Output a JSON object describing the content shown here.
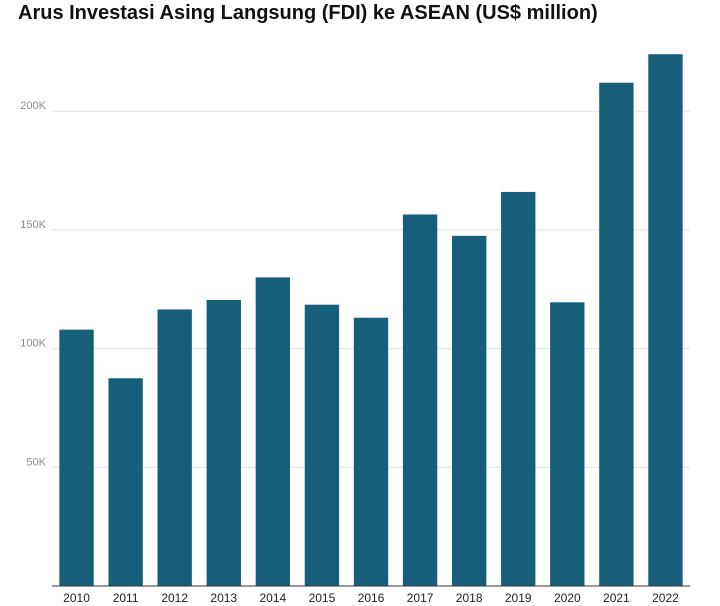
{
  "chart_data": {
    "type": "bar",
    "title": "Arus Investasi Asing Langsung (FDI) ke ASEAN (US$ million)",
    "xlabel": "",
    "ylabel": "",
    "categories": [
      "2010",
      "2011",
      "2012",
      "2013",
      "2014",
      "2015",
      "2016",
      "2017",
      "2018",
      "2019",
      "2020",
      "2021",
      "2022"
    ],
    "values": [
      108000,
      87500,
      116500,
      120500,
      130000,
      118500,
      113000,
      156500,
      147500,
      166000,
      119500,
      212000,
      224000
    ],
    "ylim": [
      0,
      230000
    ],
    "yticks": [
      {
        "value": 50000,
        "label": "50K"
      },
      {
        "value": 100000,
        "label": "100K"
      },
      {
        "value": 150000,
        "label": "150K"
      },
      {
        "value": 200000,
        "label": "200K"
      }
    ],
    "bar_color": "#175e7a",
    "grid": true,
    "legend": "none"
  }
}
